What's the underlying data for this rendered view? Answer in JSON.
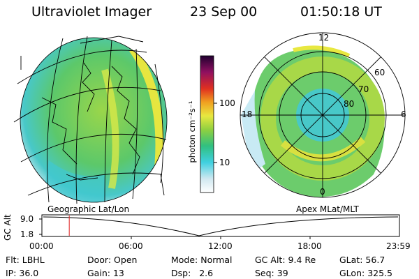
{
  "header": {
    "instrument": "Ultraviolet Imager",
    "date": "23 Sep 00",
    "time": "01:50:18 UT"
  },
  "colorbar": {
    "unit_label": "photon cm⁻²s⁻¹",
    "ticks": [
      "100",
      "10"
    ],
    "colors": [
      "#ffffff",
      "#d0e8f0",
      "#40d0e0",
      "#30c080",
      "#90d040",
      "#e8e840",
      "#f0a020",
      "#e03020",
      "#901060",
      "#200030"
    ]
  },
  "geo_panel": {
    "label": "Geographic Lat/Lon"
  },
  "polar_panel": {
    "label": "Apex MLat/MLT",
    "mlt_labels": [
      "12",
      "18",
      "6",
      "0"
    ],
    "lat_labels": [
      "60",
      "70",
      "80"
    ]
  },
  "timeline": {
    "axis_label": "GC Alt",
    "y_ticks": [
      "9.0",
      "1.8"
    ],
    "x_ticks": [
      "00:00",
      "06:00",
      "12:00",
      "18:00",
      "23:59"
    ],
    "current_time_fraction": 0.0765
  },
  "info": {
    "row1": [
      {
        "label": "Flt:",
        "value": "LBHL"
      },
      {
        "label": "Door:",
        "value": "Open"
      },
      {
        "label": "Mode:",
        "value": "Normal"
      },
      {
        "label": "GC Alt:",
        "value": "9.4 Re"
      },
      {
        "label": "GLat:",
        "value": "56.7"
      }
    ],
    "row2": [
      {
        "label": "IP:",
        "value": "36.0"
      },
      {
        "label": "Gain:",
        "value": "13"
      },
      {
        "label": "Dsp:",
        "value": "2.6"
      },
      {
        "label": "Seq:",
        "value": "39"
      },
      {
        "label": "GLon:",
        "value": "325.5"
      }
    ]
  }
}
